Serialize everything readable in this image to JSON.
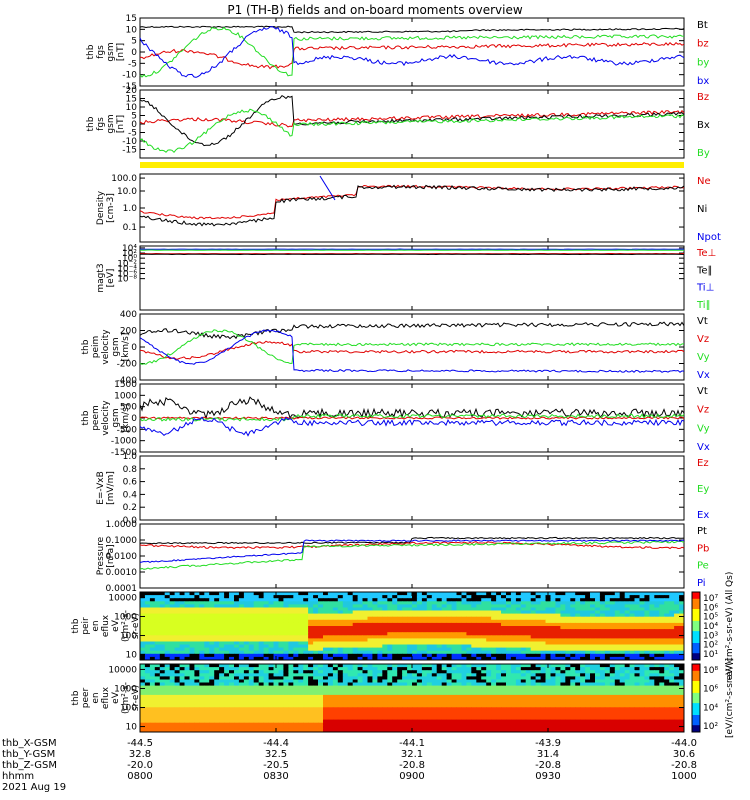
{
  "title": "P1 (TH-B) fields and on-board moments overview",
  "colors": {
    "black": "#000000",
    "red": "#e00000",
    "green": "#22dd22",
    "blue": "#0000ee",
    "yellow": "#ffee00"
  },
  "panels": [
    {
      "id": "fgs_gsm",
      "ylabel": [
        "thb",
        "fgs",
        "gsm",
        "[nT]"
      ],
      "ticks": [
        "15",
        "10",
        "5",
        "0",
        "-5",
        "-10",
        "-15"
      ],
      "legend": [
        {
          "t": "Bt",
          "c": "black"
        },
        {
          "t": "bz",
          "c": "red"
        },
        {
          "t": "by",
          "c": "green"
        },
        {
          "t": "bx",
          "c": "blue"
        }
      ]
    },
    {
      "id": "fgs_gse",
      "ylabel": [
        "thb",
        "fgs",
        "gsm",
        "[nT]"
      ],
      "ticks": [
        "20",
        "15",
        "10",
        "5",
        "0",
        "-5",
        "-10",
        "-15"
      ],
      "legend": [
        {
          "t": "Bz",
          "c": "red"
        },
        {
          "t": "Bx",
          "c": "black"
        },
        {
          "t": "By",
          "c": "green"
        }
      ]
    },
    {
      "id": "flag",
      "ylabel": [],
      "ticks": [],
      "legend": []
    },
    {
      "id": "density",
      "ylabel": [
        "Density",
        "[cm-3]"
      ],
      "ticks": [
        "100.0",
        "10.0",
        "1.0",
        "0.1"
      ],
      "legend": [
        {
          "t": "Ne",
          "c": "red"
        },
        {
          "t": "Ni",
          "c": "black"
        },
        {
          "t": "Npot",
          "c": "blue"
        }
      ]
    },
    {
      "id": "temp",
      "ylabel": [
        "magt3",
        "[eV]"
      ],
      "ticks": [
        "10⁴",
        "10²",
        "10⁰",
        "10⁻²",
        "10⁻⁴",
        "10⁻⁶",
        "10⁻⁸"
      ],
      "legend": [
        {
          "t": "Te⊥",
          "c": "red"
        },
        {
          "t": "Te∥",
          "c": "black"
        },
        {
          "t": "Ti⊥",
          "c": "blue"
        },
        {
          "t": "Ti∥",
          "c": "green"
        }
      ]
    },
    {
      "id": "ivel",
      "ylabel": [
        "thb",
        "peim",
        "velocity",
        "gsm",
        "[km/s]"
      ],
      "ticks": [
        "400",
        "200",
        "0",
        "-200",
        "-400"
      ],
      "legend": [
        {
          "t": "Vt",
          "c": "black"
        },
        {
          "t": "Vz",
          "c": "red"
        },
        {
          "t": "Vy",
          "c": "green"
        },
        {
          "t": "Vx",
          "c": "blue"
        }
      ]
    },
    {
      "id": "evel",
      "ylabel": [
        "thb",
        "peem",
        "velocity",
        "gsm",
        "[km/s]"
      ],
      "ticks": [
        "1500",
        "1000",
        "500",
        "0",
        "-500",
        "-1000",
        "-1500"
      ],
      "legend": [
        {
          "t": "Vt",
          "c": "black"
        },
        {
          "t": "Vz",
          "c": "red"
        },
        {
          "t": "Vy",
          "c": "green"
        },
        {
          "t": "Vx",
          "c": "blue"
        }
      ]
    },
    {
      "id": "efield",
      "ylabel": [
        "E=-VxB",
        "[mV/m]"
      ],
      "ticks": [
        "1.0",
        "0.8",
        "0.6",
        "0.4",
        "0.2",
        "0.0"
      ],
      "legend": [
        {
          "t": "Ez",
          "c": "red"
        },
        {
          "t": "Ey",
          "c": "green"
        },
        {
          "t": "Ex",
          "c": "blue"
        }
      ]
    },
    {
      "id": "pressure",
      "ylabel": [
        "Pressure",
        "[nPa]"
      ],
      "ticks": [
        "1.0000",
        "0.1000",
        "0.0100",
        "0.0010",
        "0.0001"
      ],
      "legend": [
        {
          "t": "Pt",
          "c": "black"
        },
        {
          "t": "Pb",
          "c": "red"
        },
        {
          "t": "Pe",
          "c": "green"
        },
        {
          "t": "Pi",
          "c": "blue"
        }
      ]
    },
    {
      "id": "ispec",
      "ylabel": [
        "thb",
        "peir",
        "en",
        "eflux",
        "eV",
        "(cm²-s-",
        "sr-eV)"
      ],
      "ticks": [
        "10000",
        "1000",
        "100",
        "10"
      ],
      "legend": []
    },
    {
      "id": "espec",
      "ylabel": [
        "thb",
        "peer",
        "en",
        "eflux",
        "eV",
        "(cm²-s-",
        "sr-eV)"
      ],
      "ticks": [
        "10000",
        "1000",
        "100",
        "10"
      ],
      "legend": []
    }
  ],
  "colorbar_top": {
    "ticks": [
      "10⁷",
      "10⁶",
      "10⁵",
      "10⁴",
      "10³",
      "10²",
      "10¹"
    ],
    "label": "eV/(cm²-s-sr-eV) (All Qs)"
  },
  "colorbar_bottom": {
    "ticks": [
      "10⁸",
      "10⁶",
      "10⁴",
      "10²"
    ],
    "label": "[eV/(cm²-s-sr-eV)]"
  },
  "xaxis": {
    "rows": [
      {
        "label": "thb_X-GSM",
        "vals": [
          "-44.5",
          "-44.4",
          "-44.1",
          "-43.9",
          "-44.0"
        ]
      },
      {
        "label": "thb_Y-GSM",
        "vals": [
          "32.8",
          "32.5",
          "32.1",
          "31.4",
          "30.6"
        ]
      },
      {
        "label": "thb_Z-GSM",
        "vals": [
          "-20.0",
          "-20.5",
          "-20.8",
          "-20.8",
          "-20.8"
        ]
      },
      {
        "label": "hhmm",
        "vals": [
          "0800",
          "0830",
          "0900",
          "0930",
          "1000"
        ]
      }
    ],
    "date": "2021 Aug 19"
  },
  "chart_data": [
    {
      "type": "line",
      "panel": "fgs_gsm",
      "ylabel": "thb fgs gsm [nT]",
      "ylim": [
        -15,
        15
      ],
      "x": [
        "0800",
        "0830",
        "0900",
        "0930",
        "1000"
      ],
      "series": [
        {
          "name": "Bt",
          "values": [
            11,
            10,
            4,
            6,
            7
          ]
        },
        {
          "name": "bz",
          "values": [
            -2,
            0,
            2,
            4,
            5
          ]
        },
        {
          "name": "by",
          "values": [
            -8,
            5,
            4,
            4,
            5
          ]
        },
        {
          "name": "bx",
          "values": [
            5,
            -3,
            -3,
            -3,
            -1
          ]
        }
      ]
    },
    {
      "type": "line",
      "panel": "fgs_gse",
      "ylabel": "thb fgs gsm [nT]",
      "ylim": [
        -20,
        20
      ],
      "x": [
        "0800",
        "0830",
        "0900",
        "0930",
        "1000"
      ],
      "series": [
        {
          "name": "Bz",
          "values": [
            3,
            2,
            4,
            7,
            10
          ]
        },
        {
          "name": "Bx",
          "values": [
            -5,
            -3,
            3,
            6,
            6
          ]
        },
        {
          "name": "By",
          "values": [
            -9,
            -5,
            3,
            5,
            6
          ]
        }
      ]
    },
    {
      "type": "line",
      "panel": "density",
      "ylabel": "Density [cm-3]",
      "ylim": [
        0.1,
        100
      ],
      "scale": "log",
      "x": [
        "0800",
        "0830",
        "0900",
        "0930",
        "1000"
      ],
      "series": [
        {
          "name": "Ne",
          "values": [
            0.3,
            2,
            8,
            7,
            7
          ]
        },
        {
          "name": "Ni",
          "values": [
            0.2,
            1.5,
            8,
            7,
            7
          ]
        },
        {
          "name": "Npot",
          "values": [
            0.3,
            2,
            8,
            7,
            7
          ]
        }
      ]
    },
    {
      "type": "line",
      "panel": "ion_velocity",
      "ylabel": "thb peim velocity gsm [km/s]",
      "ylim": [
        -400,
        400
      ],
      "x": [
        "0800",
        "0830",
        "0900",
        "0930",
        "1000"
      ],
      "series": [
        {
          "name": "Vt",
          "values": [
            200,
            250,
            280,
            300,
            310
          ]
        },
        {
          "name": "Vz",
          "values": [
            -50,
            -20,
            -10,
            -20,
            -20
          ]
        },
        {
          "name": "Vy",
          "values": [
            100,
            150,
            30,
            20,
            40
          ]
        },
        {
          "name": "Vx",
          "values": [
            0,
            -100,
            -260,
            -280,
            -300
          ]
        }
      ]
    },
    {
      "type": "line",
      "panel": "pressure",
      "ylabel": "Pressure [nPa]",
      "ylim": [
        0.0001,
        1
      ],
      "scale": "log",
      "x": [
        "0800",
        "0830",
        "0900",
        "0930",
        "1000"
      ],
      "series": [
        {
          "name": "Pt",
          "values": [
            0.06,
            0.05,
            0.1,
            0.1,
            0.09
          ]
        },
        {
          "name": "Pb",
          "values": [
            0.05,
            0.04,
            0.03,
            0.03,
            0.04
          ]
        },
        {
          "name": "Pe",
          "values": [
            0.003,
            0.01,
            0.05,
            0.05,
            0.06
          ]
        },
        {
          "name": "Pi",
          "values": [
            0.005,
            0.02,
            0.08,
            0.07,
            0.07
          ]
        }
      ]
    }
  ]
}
